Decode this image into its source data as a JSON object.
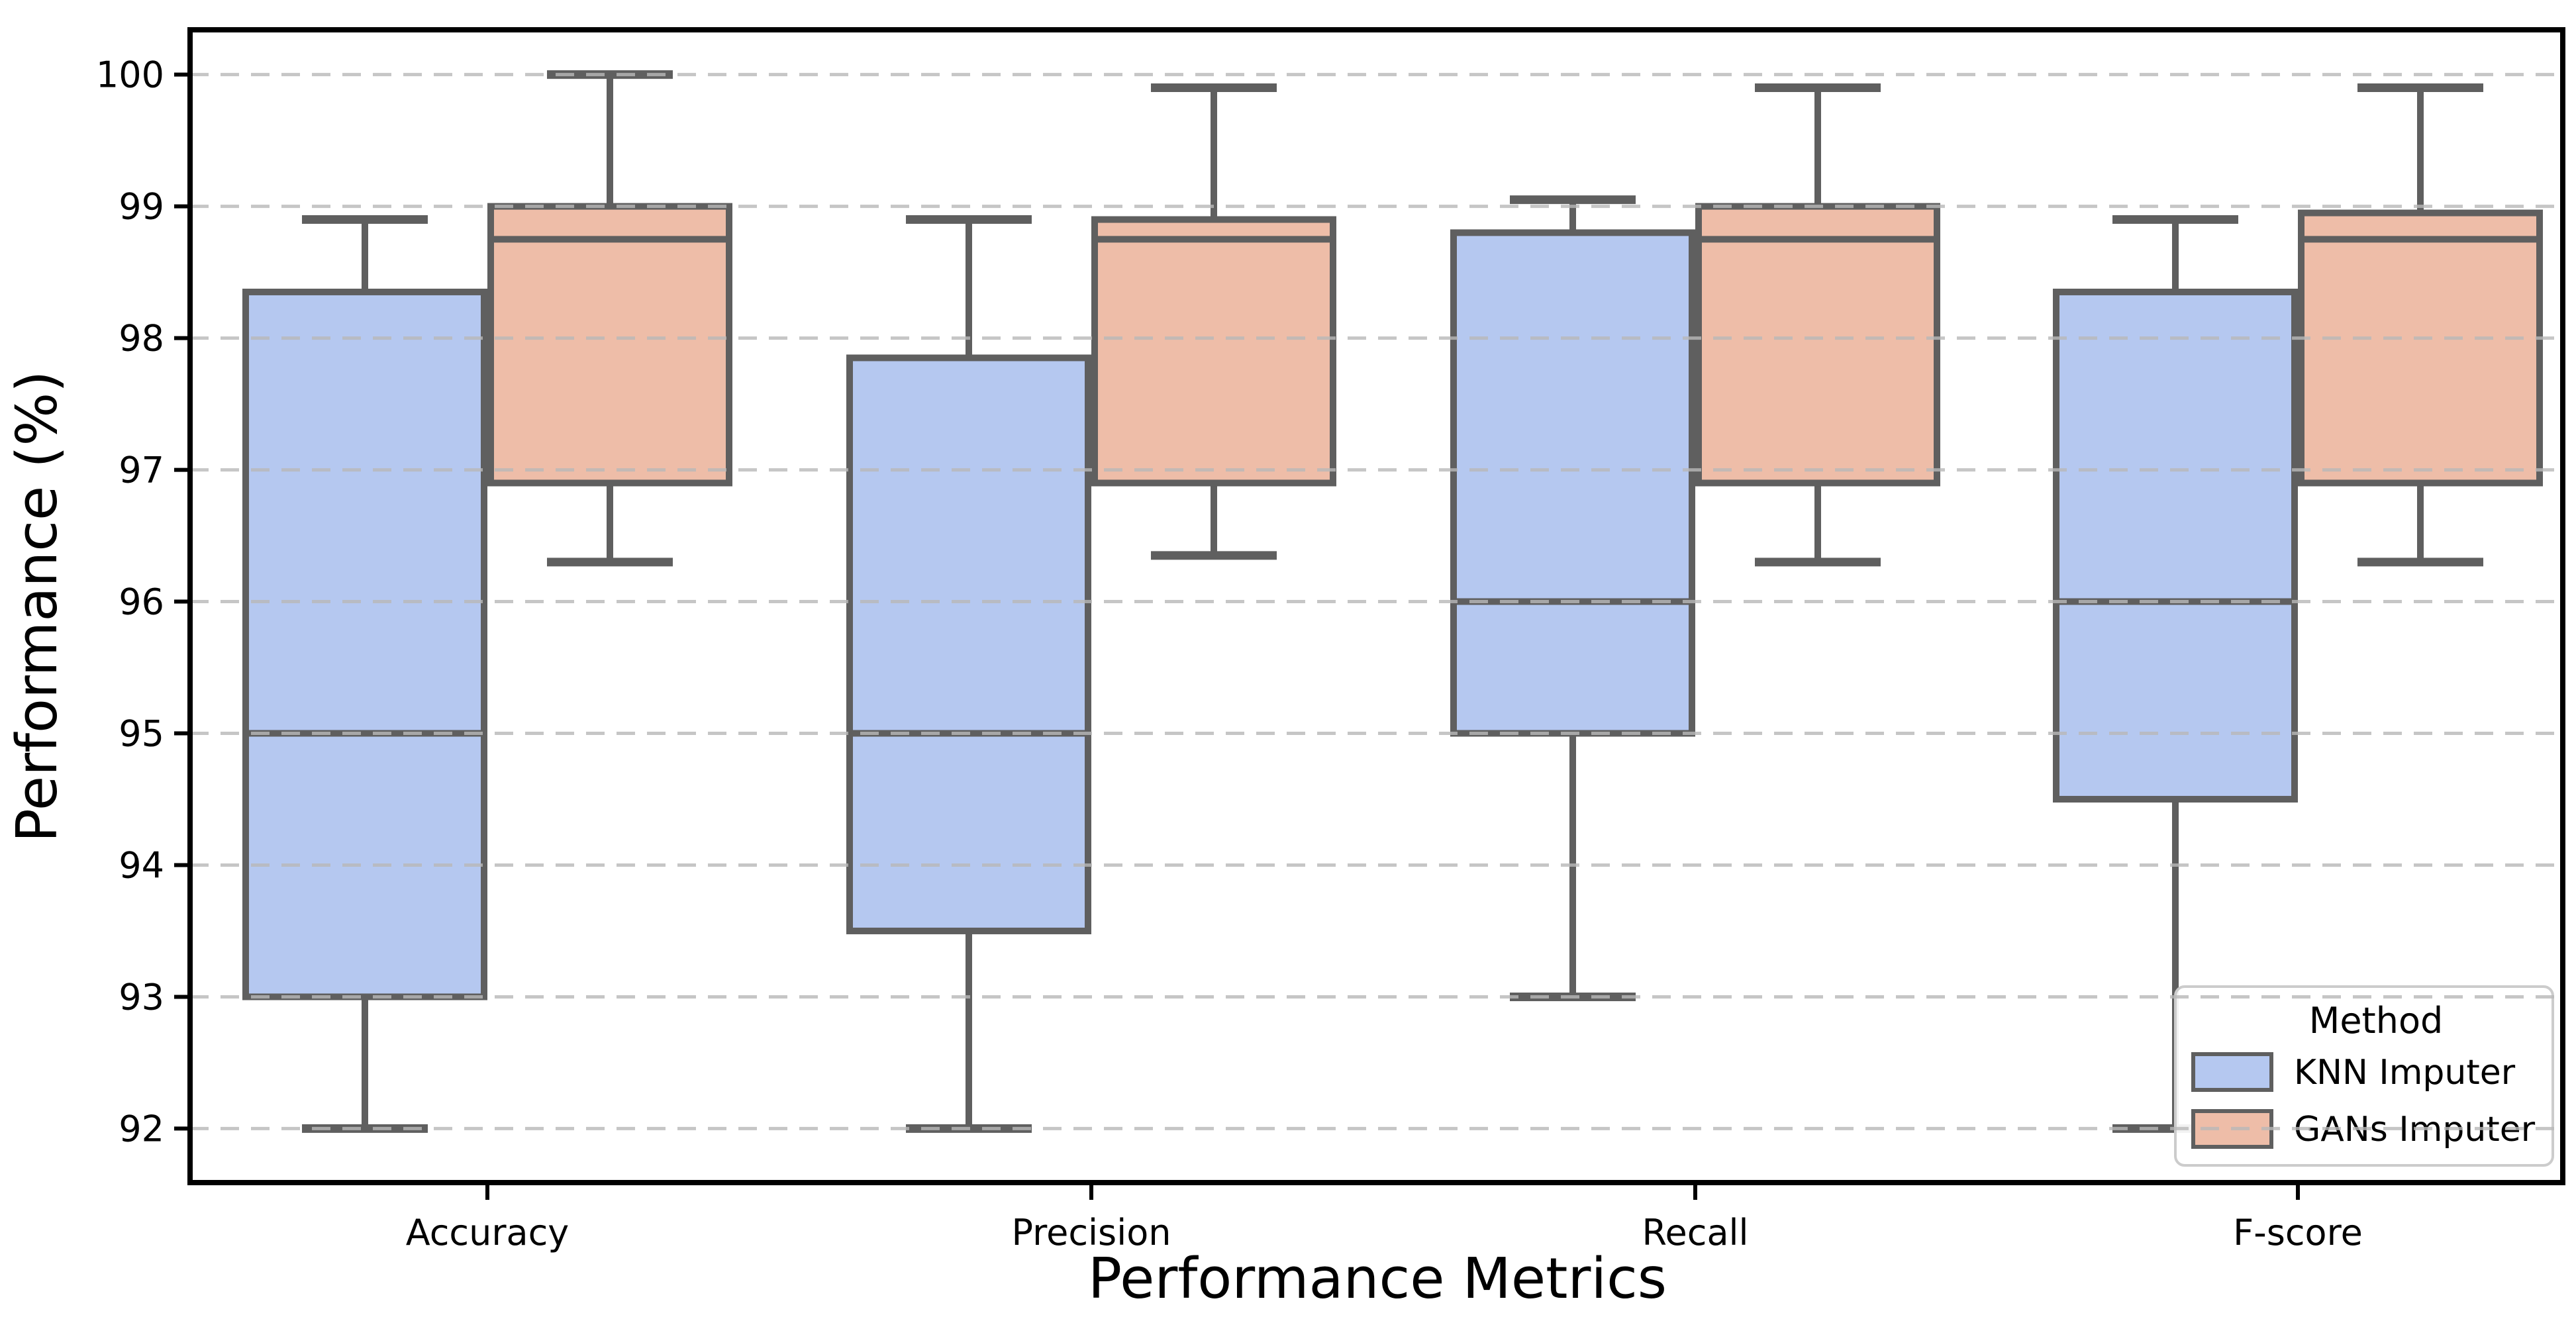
{
  "chart_data": {
    "type": "boxplot",
    "xlabel": "Performance Metrics",
    "ylabel": "Performance (%)",
    "categories": [
      "Accuracy",
      "Precision",
      "Recall",
      "F-score"
    ],
    "yticks": [
      92,
      93,
      94,
      95,
      96,
      97,
      98,
      99,
      100
    ],
    "ylim": [
      91.59,
      100.34
    ],
    "grid": "horizontal-dashed",
    "grid_color": "#b9b9b9",
    "box_edge_color": "#5f5f5f",
    "legend": {
      "title": "Method",
      "position": "lower right",
      "entries": [
        {
          "label": "KNN Imputer",
          "color": "#b5c8f0"
        },
        {
          "label": "GANs Imputer",
          "color": "#eebda8"
        }
      ]
    },
    "series": [
      {
        "name": "KNN Imputer",
        "color": "#b5c8f0",
        "boxes": [
          {
            "category": "Accuracy",
            "whislo": 92.0,
            "q1": 93.0,
            "med": 95.0,
            "q3": 98.35,
            "whishi": 98.9
          },
          {
            "category": "Precision",
            "whislo": 92.0,
            "q1": 93.5,
            "med": 95.0,
            "q3": 97.85,
            "whishi": 98.9
          },
          {
            "category": "Recall",
            "whislo": 93.0,
            "q1": 95.0,
            "med": 96.0,
            "q3": 98.8,
            "whishi": 99.05
          },
          {
            "category": "F-score",
            "whislo": 92.0,
            "q1": 94.5,
            "med": 96.0,
            "q3": 98.35,
            "whishi": 98.9
          }
        ]
      },
      {
        "name": "GANs Imputer",
        "color": "#eebda8",
        "boxes": [
          {
            "category": "Accuracy",
            "whislo": 96.3,
            "q1": 96.9,
            "med": 98.75,
            "q3": 99.0,
            "whishi": 100.0
          },
          {
            "category": "Precision",
            "whislo": 96.35,
            "q1": 96.9,
            "med": 98.75,
            "q3": 98.9,
            "whishi": 99.9
          },
          {
            "category": "Recall",
            "whislo": 96.3,
            "q1": 96.9,
            "med": 98.75,
            "q3": 99.0,
            "whishi": 99.9
          },
          {
            "category": "F-score",
            "whislo": 96.3,
            "q1": 96.9,
            "med": 98.75,
            "q3": 98.95,
            "whishi": 99.9
          }
        ]
      }
    ]
  }
}
